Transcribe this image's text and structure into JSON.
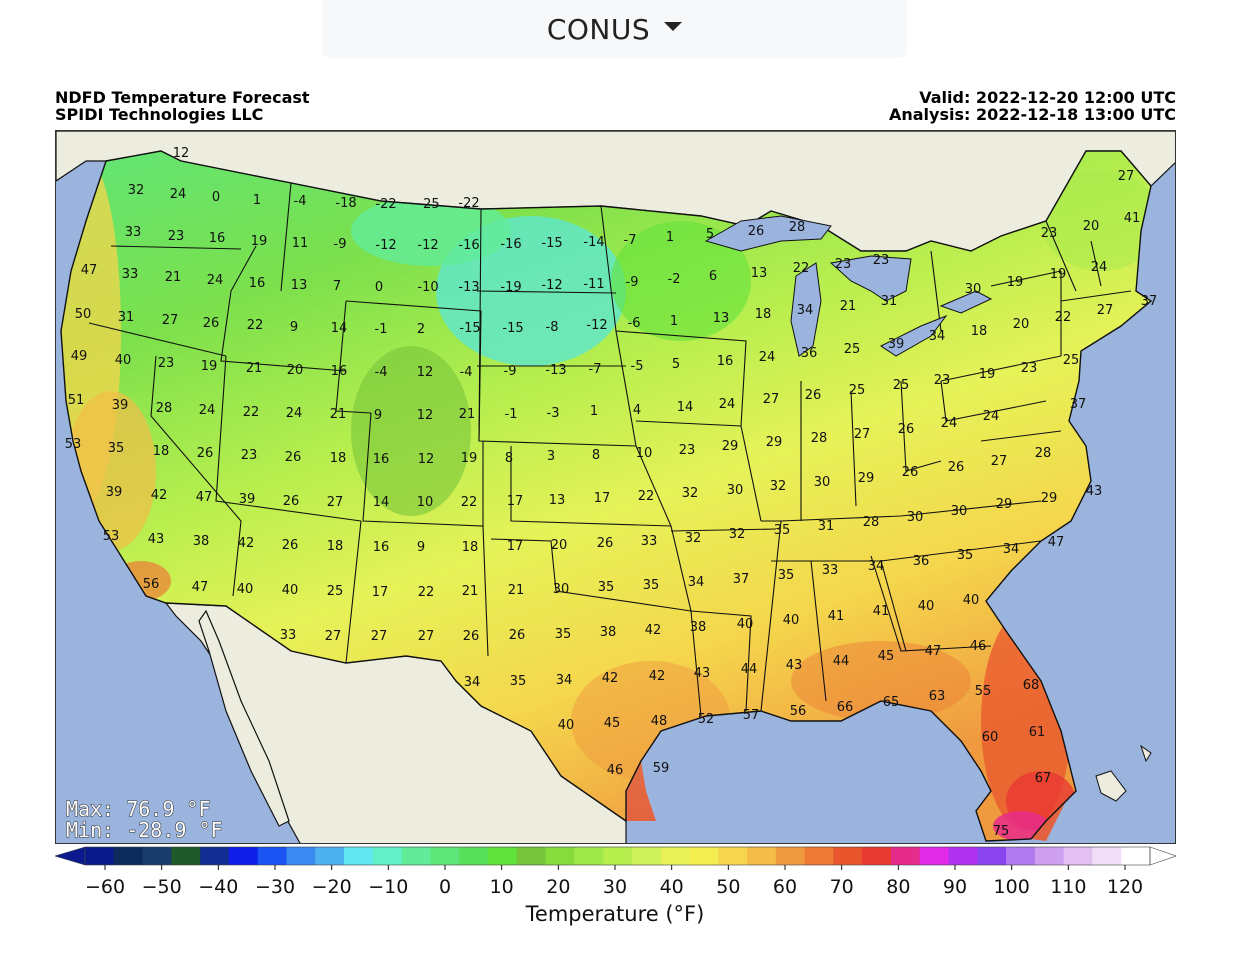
{
  "region_selector": {
    "label": "CONUS"
  },
  "header": {
    "title_line1": "NDFD Temperature Forecast",
    "title_line2": "SPIDI Technologies LLC",
    "valid": "Valid: 2022-12-20 12:00 UTC",
    "analysis": "Analysis: 2022-12-18 13:00 UTC"
  },
  "stats": {
    "max": "Max: 76.9 °F",
    "min": "Min: -28.9 °F"
  },
  "colors": {
    "ocean": "#9ab4de",
    "land_outside": "#ededdf",
    "lake": "#9ab4de"
  },
  "colorbar": {
    "title": "Temperature (°F)",
    "ticks": [
      "−60",
      "−50",
      "−40",
      "−30",
      "−20",
      "−10",
      "0",
      "10",
      "20",
      "30",
      "40",
      "50",
      "60",
      "70",
      "80",
      "90",
      "100",
      "110",
      "120"
    ],
    "bins": [
      "#0a1a8c",
      "#0c2a5c",
      "#173c6a",
      "#1f5a2a",
      "#122d94",
      "#0f1ee8",
      "#1b52f2",
      "#3a8af2",
      "#4fb2f0",
      "#61e6f2",
      "#62f0c6",
      "#62ec9a",
      "#5ee67a",
      "#58e05a",
      "#62e23c",
      "#78c43a",
      "#86dc3c",
      "#9ee84a",
      "#b6ee4e",
      "#cdf25a",
      "#e6f258",
      "#f4ee50",
      "#f5d64c",
      "#f4bd48",
      "#f09a40",
      "#ec7a36",
      "#e9562e",
      "#e83a32",
      "#e62c8a",
      "#e02ce8",
      "#b032f0",
      "#8a44f0",
      "#b27af0",
      "#d0a0f0",
      "#e2c0f2",
      "#f2e0f8",
      "#ffffff"
    ]
  },
  "map_labels": [
    [
      "12",
      180,
      151
    ],
    [
      "32",
      135,
      188
    ],
    [
      "24",
      177,
      192
    ],
    [
      "0",
      215,
      195
    ],
    [
      "1",
      256,
      198
    ],
    [
      "-4",
      299,
      199
    ],
    [
      "-18",
      345,
      201
    ],
    [
      "-22",
      385,
      202
    ],
    [
      "-25",
      428,
      202
    ],
    [
      "-22",
      468,
      201
    ],
    [
      "33",
      132,
      230
    ],
    [
      "23",
      175,
      234
    ],
    [
      "16",
      216,
      236
    ],
    [
      "19",
      258,
      239
    ],
    [
      "11",
      299,
      241
    ],
    [
      "-9",
      339,
      242
    ],
    [
      "-12",
      385,
      243
    ],
    [
      "-12",
      427,
      243
    ],
    [
      "-16",
      468,
      243
    ],
    [
      "-16",
      510,
      242
    ],
    [
      "-15",
      551,
      241
    ],
    [
      "-14",
      593,
      240
    ],
    [
      "-7",
      629,
      238
    ],
    [
      "1",
      669,
      235
    ],
    [
      "5",
      709,
      232
    ],
    [
      "26",
      755,
      229
    ],
    [
      "28",
      796,
      225
    ],
    [
      "27",
      1125,
      174
    ],
    [
      "20",
      1090,
      224
    ],
    [
      "23",
      1048,
      231
    ],
    [
      "41",
      1131,
      216
    ],
    [
      "47",
      88,
      268
    ],
    [
      "33",
      129,
      272
    ],
    [
      "21",
      172,
      275
    ],
    [
      "24",
      214,
      278
    ],
    [
      "16",
      256,
      281
    ],
    [
      "13",
      298,
      283
    ],
    [
      "7",
      336,
      284
    ],
    [
      "0",
      378,
      285
    ],
    [
      "-10",
      427,
      285
    ],
    [
      "-13",
      468,
      285
    ],
    [
      "-19",
      510,
      285
    ],
    [
      "-12",
      551,
      283
    ],
    [
      "-11",
      593,
      282
    ],
    [
      "-9",
      631,
      280
    ],
    [
      "-2",
      673,
      277
    ],
    [
      "6",
      712,
      274
    ],
    [
      "13",
      758,
      271
    ],
    [
      "22",
      800,
      266
    ],
    [
      "23",
      842,
      262
    ],
    [
      "23",
      880,
      258
    ],
    [
      "19",
      1014,
      280
    ],
    [
      "19",
      1057,
      272
    ],
    [
      "24",
      1098,
      265
    ],
    [
      "30",
      972,
      287
    ],
    [
      "37",
      1148,
      299
    ],
    [
      "50",
      82,
      312
    ],
    [
      "31",
      125,
      315
    ],
    [
      "27",
      169,
      318
    ],
    [
      "26",
      210,
      321
    ],
    [
      "22",
      254,
      323
    ],
    [
      "9",
      293,
      325
    ],
    [
      "14",
      338,
      326
    ],
    [
      "-1",
      380,
      327
    ],
    [
      "2",
      420,
      327
    ],
    [
      "-15",
      469,
      326
    ],
    [
      "-15",
      512,
      326
    ],
    [
      "-8",
      551,
      325
    ],
    [
      "-12",
      596,
      323
    ],
    [
      "-6",
      633,
      321
    ],
    [
      "1",
      673,
      319
    ],
    [
      "13",
      720,
      316
    ],
    [
      "18",
      762,
      312
    ],
    [
      "34",
      804,
      308
    ],
    [
      "21",
      847,
      304
    ],
    [
      "31",
      888,
      299
    ],
    [
      "18",
      978,
      329
    ],
    [
      "20",
      1020,
      322
    ],
    [
      "22",
      1062,
      315
    ],
    [
      "27",
      1104,
      308
    ],
    [
      "49",
      78,
      354
    ],
    [
      "40",
      122,
      358
    ],
    [
      "23",
      165,
      361
    ],
    [
      "19",
      208,
      364
    ],
    [
      "21",
      253,
      366
    ],
    [
      "20",
      294,
      368
    ],
    [
      "16",
      338,
      369
    ],
    [
      "-4",
      380,
      370
    ],
    [
      "12",
      424,
      370
    ],
    [
      "-4",
      465,
      370
    ],
    [
      "-9",
      509,
      369
    ],
    [
      "-13",
      555,
      368
    ],
    [
      "-7",
      594,
      367
    ],
    [
      "-5",
      636,
      364
    ],
    [
      "5",
      675,
      362
    ],
    [
      "16",
      724,
      359
    ],
    [
      "24",
      766,
      355
    ],
    [
      "36",
      808,
      351
    ],
    [
      "25",
      851,
      347
    ],
    [
      "39",
      895,
      342
    ],
    [
      "34",
      936,
      334
    ],
    [
      "19",
      986,
      372
    ],
    [
      "23",
      1028,
      366
    ],
    [
      "25",
      1070,
      358
    ],
    [
      "51",
      75,
      398
    ],
    [
      "39",
      119,
      403
    ],
    [
      "28",
      163,
      406
    ],
    [
      "24",
      206,
      408
    ],
    [
      "22",
      250,
      410
    ],
    [
      "24",
      293,
      411
    ],
    [
      "21",
      337,
      412
    ],
    [
      "9",
      377,
      413
    ],
    [
      "12",
      424,
      413
    ],
    [
      "21",
      466,
      412
    ],
    [
      "-1",
      510,
      412
    ],
    [
      "-3",
      552,
      411
    ],
    [
      "1",
      593,
      409
    ],
    [
      "4",
      636,
      408
    ],
    [
      "14",
      684,
      405
    ],
    [
      "24",
      726,
      402
    ],
    [
      "27",
      770,
      397
    ],
    [
      "26",
      812,
      393
    ],
    [
      "25",
      856,
      388
    ],
    [
      "25",
      900,
      383
    ],
    [
      "23",
      941,
      378
    ],
    [
      "24",
      948,
      421
    ],
    [
      "24",
      990,
      414
    ],
    [
      "37",
      1077,
      402
    ],
    [
      "53",
      72,
      442
    ],
    [
      "35",
      115,
      446
    ],
    [
      "18",
      160,
      449
    ],
    [
      "26",
      204,
      451
    ],
    [
      "23",
      248,
      453
    ],
    [
      "26",
      292,
      455
    ],
    [
      "18",
      337,
      456
    ],
    [
      "16",
      380,
      457
    ],
    [
      "12",
      425,
      457
    ],
    [
      "19",
      468,
      456
    ],
    [
      "8",
      508,
      456
    ],
    [
      "3",
      550,
      454
    ],
    [
      "8",
      595,
      453
    ],
    [
      "10",
      643,
      451
    ],
    [
      "23",
      686,
      448
    ],
    [
      "29",
      729,
      444
    ],
    [
      "29",
      773,
      440
    ],
    [
      "28",
      818,
      436
    ],
    [
      "27",
      861,
      432
    ],
    [
      "26",
      905,
      427
    ],
    [
      "26",
      955,
      465
    ],
    [
      "27",
      998,
      459
    ],
    [
      "28",
      1042,
      451
    ],
    [
      "39",
      113,
      490
    ],
    [
      "42",
      158,
      493
    ],
    [
      "47",
      203,
      495
    ],
    [
      "39",
      246,
      497
    ],
    [
      "26",
      290,
      499
    ],
    [
      "27",
      334,
      500
    ],
    [
      "14",
      380,
      500
    ],
    [
      "10",
      424,
      500
    ],
    [
      "22",
      468,
      500
    ],
    [
      "17",
      514,
      499
    ],
    [
      "13",
      556,
      498
    ],
    [
      "17",
      601,
      496
    ],
    [
      "22",
      645,
      494
    ],
    [
      "32",
      689,
      491
    ],
    [
      "30",
      734,
      488
    ],
    [
      "32",
      777,
      484
    ],
    [
      "30",
      821,
      480
    ],
    [
      "29",
      865,
      476
    ],
    [
      "26",
      909,
      470
    ],
    [
      "30",
      914,
      515
    ],
    [
      "30",
      958,
      509
    ],
    [
      "29",
      1003,
      502
    ],
    [
      "29",
      1048,
      496
    ],
    [
      "43",
      1093,
      489
    ],
    [
      "53",
      110,
      534
    ],
    [
      "43",
      155,
      537
    ],
    [
      "38",
      200,
      539
    ],
    [
      "42",
      245,
      541
    ],
    [
      "26",
      289,
      543
    ],
    [
      "18",
      334,
      544
    ],
    [
      "16",
      380,
      545
    ],
    [
      "9",
      420,
      545
    ],
    [
      "18",
      469,
      545
    ],
    [
      "17",
      514,
      544
    ],
    [
      "20",
      558,
      543
    ],
    [
      "26",
      604,
      541
    ],
    [
      "33",
      648,
      539
    ],
    [
      "32",
      692,
      536
    ],
    [
      "32",
      736,
      532
    ],
    [
      "35",
      781,
      528
    ],
    [
      "31",
      825,
      524
    ],
    [
      "28",
      870,
      520
    ],
    [
      "35",
      964,
      553
    ],
    [
      "34",
      1010,
      547
    ],
    [
      "47",
      1055,
      540
    ],
    [
      "56",
      150,
      582
    ],
    [
      "47",
      199,
      585
    ],
    [
      "40",
      244,
      587
    ],
    [
      "40",
      289,
      588
    ],
    [
      "25",
      334,
      589
    ],
    [
      "17",
      379,
      590
    ],
    [
      "22",
      425,
      590
    ],
    [
      "21",
      469,
      589
    ],
    [
      "21",
      515,
      588
    ],
    [
      "30",
      560,
      587
    ],
    [
      "35",
      605,
      585
    ],
    [
      "35",
      650,
      583
    ],
    [
      "34",
      695,
      580
    ],
    [
      "37",
      740,
      577
    ],
    [
      "35",
      785,
      573
    ],
    [
      "33",
      829,
      568
    ],
    [
      "34",
      875,
      564
    ],
    [
      "36",
      920,
      559
    ],
    [
      "33",
      287,
      633
    ],
    [
      "27",
      332,
      634
    ],
    [
      "27",
      378,
      634
    ],
    [
      "27",
      425,
      634
    ],
    [
      "26",
      470,
      634
    ],
    [
      "26",
      516,
      633
    ],
    [
      "35",
      562,
      632
    ],
    [
      "38",
      607,
      630
    ],
    [
      "42",
      652,
      628
    ],
    [
      "38",
      697,
      625
    ],
    [
      "40",
      744,
      622
    ],
    [
      "40",
      790,
      618
    ],
    [
      "41",
      835,
      614
    ],
    [
      "41",
      880,
      609
    ],
    [
      "40",
      925,
      604
    ],
    [
      "40",
      970,
      598
    ],
    [
      "34",
      471,
      680
    ],
    [
      "35",
      517,
      679
    ],
    [
      "34",
      563,
      678
    ],
    [
      "42",
      609,
      676
    ],
    [
      "42",
      656,
      674
    ],
    [
      "43",
      701,
      671
    ],
    [
      "44",
      748,
      667
    ],
    [
      "43",
      793,
      663
    ],
    [
      "44",
      840,
      659
    ],
    [
      "45",
      885,
      654
    ],
    [
      "47",
      932,
      649
    ],
    [
      "46",
      977,
      644
    ],
    [
      "40",
      565,
      723
    ],
    [
      "45",
      611,
      721
    ],
    [
      "48",
      658,
      719
    ],
    [
      "52",
      705,
      717
    ],
    [
      "57",
      750,
      713
    ],
    [
      "56",
      797,
      709
    ],
    [
      "66",
      844,
      705
    ],
    [
      "65",
      890,
      700
    ],
    [
      "63",
      936,
      694
    ],
    [
      "55",
      982,
      689
    ],
    [
      "68",
      1030,
      683
    ],
    [
      "46",
      614,
      768
    ],
    [
      "59",
      660,
      766
    ],
    [
      "60",
      989,
      735
    ],
    [
      "61",
      1036,
      730
    ],
    [
      "67",
      1042,
      776
    ],
    [
      "75",
      1000,
      829
    ]
  ]
}
